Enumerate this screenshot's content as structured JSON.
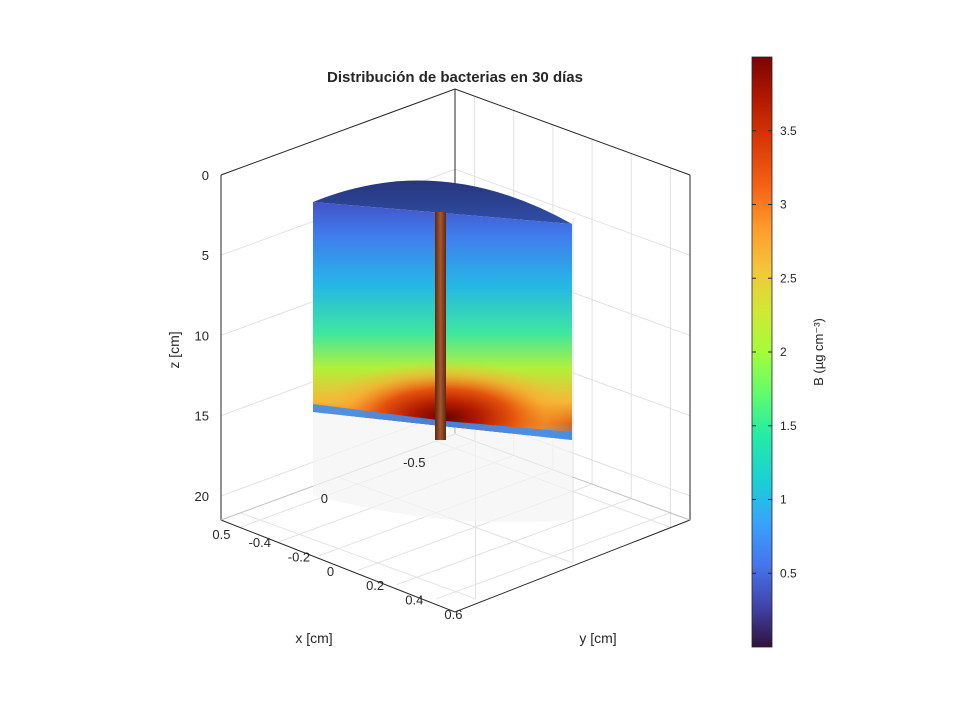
{
  "chart_data": {
    "type": "surface3d",
    "title": "Distribución de bacterias en 30 días",
    "xlabel": "x [cm]",
    "ylabel": "y [cm]",
    "zlabel": "z [cm]",
    "x_ticks": [
      "-0.5",
      "0",
      "0.5"
    ],
    "y_ticks": [
      "-0.4",
      "-0.2",
      "0",
      "0.2",
      "0.4",
      "0.6"
    ],
    "z_ticks": [
      "0",
      "5",
      "10",
      "15",
      "20"
    ],
    "z_reversed": true,
    "xlim": [
      -0.6,
      0.6
    ],
    "ylim": [
      -0.5,
      0.7
    ],
    "zlim": [
      0,
      21.5
    ],
    "cylinder_depth": 15,
    "hotspot_depth": 14,
    "grid": true,
    "colorbar": {
      "label": "B (µg cm⁻³)",
      "ticks": [
        "0.5",
        "1",
        "1.5",
        "2",
        "2.5",
        "3",
        "3.5"
      ],
      "range": [
        0,
        4
      ],
      "colormap": "turbo"
    }
  }
}
